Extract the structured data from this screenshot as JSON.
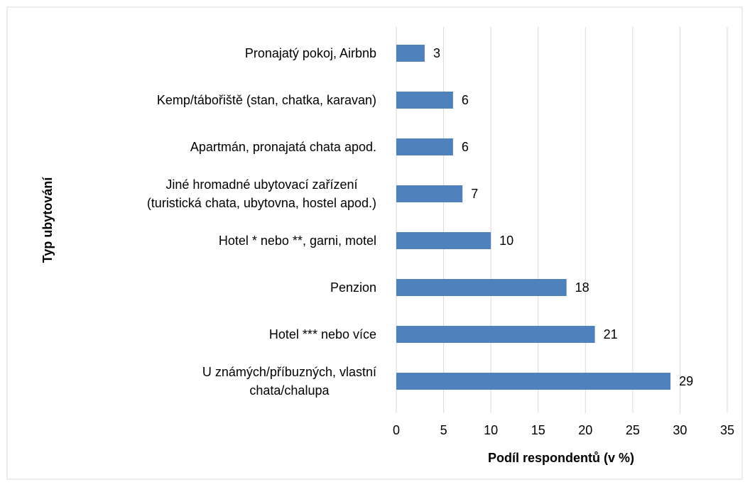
{
  "chart_data": {
    "type": "barh",
    "categories": [
      "Pronajatý pokoj, Airbnb",
      "Kemp/tábořiště (stan, chatka, karavan)",
      "Apartmán, pronajatá chata apod.",
      "Jiné hromadné ubytovací zařízení\n(turistická chata, ubytovna, hostel apod.)",
      "Hotel * nebo **, garni, motel",
      "Penzion",
      "Hotel *** nebo více",
      "U známých/příbuzných, vlastní\nchata/chalupa"
    ],
    "values": [
      3,
      6,
      6,
      7,
      10,
      18,
      21,
      29
    ],
    "color": "#4f81bd",
    "xlabel": "Podíl respondentů (v %)",
    "ylabel": "Typ ubytování",
    "xlim": [
      0,
      35
    ],
    "xticks": [
      0,
      5,
      10,
      15,
      20,
      25,
      30,
      35
    ],
    "grid": true
  }
}
